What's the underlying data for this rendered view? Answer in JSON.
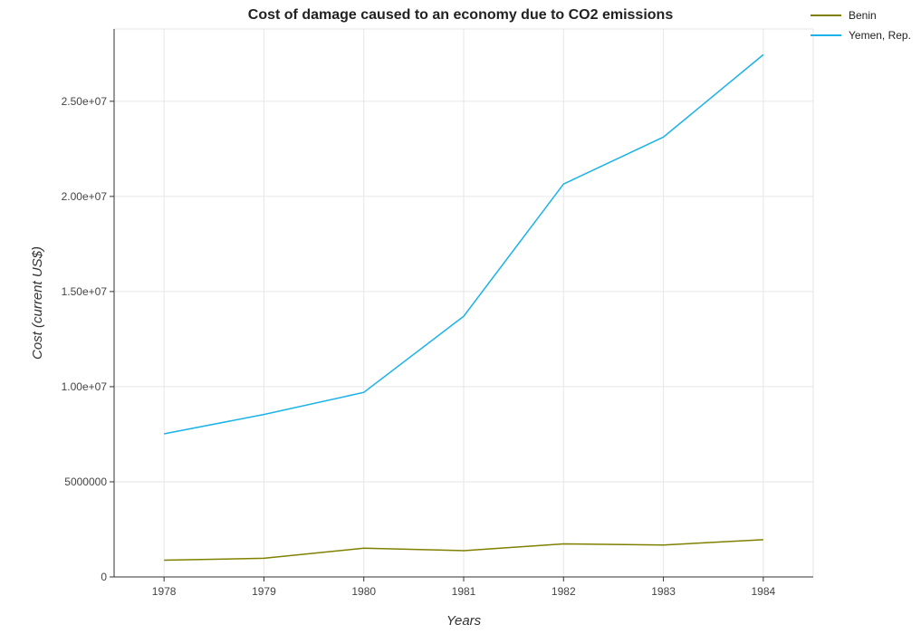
{
  "chart_data": {
    "type": "line",
    "title": "Cost of damage caused to an economy due to CO2 emissions",
    "xlabel": "Years",
    "ylabel": "Cost (current US$)",
    "categories": [
      "1978",
      "1979",
      "1980",
      "1981",
      "1982",
      "1983",
      "1984"
    ],
    "series": [
      {
        "name": "Benin",
        "color": "#808000",
        "values": [
          880000,
          980000,
          1510000,
          1380000,
          1740000,
          1680000,
          1960000
        ]
      },
      {
        "name": "Yemen, Rep.",
        "color": "#1ab2e8",
        "values": [
          7520000,
          8540000,
          9700000,
          13700000,
          20650000,
          23120000,
          27450000
        ]
      }
    ],
    "ylim": [
      0,
      28800000
    ],
    "yticks": [
      0,
      5000000,
      10000000,
      15000000,
      20000000,
      25000000
    ],
    "ytick_labels": [
      "0",
      "5000000",
      "1.00e+07",
      "1.50e+07",
      "2.00e+07",
      "2.50e+07"
    ],
    "grid": true,
    "legend_position": "top-right"
  }
}
